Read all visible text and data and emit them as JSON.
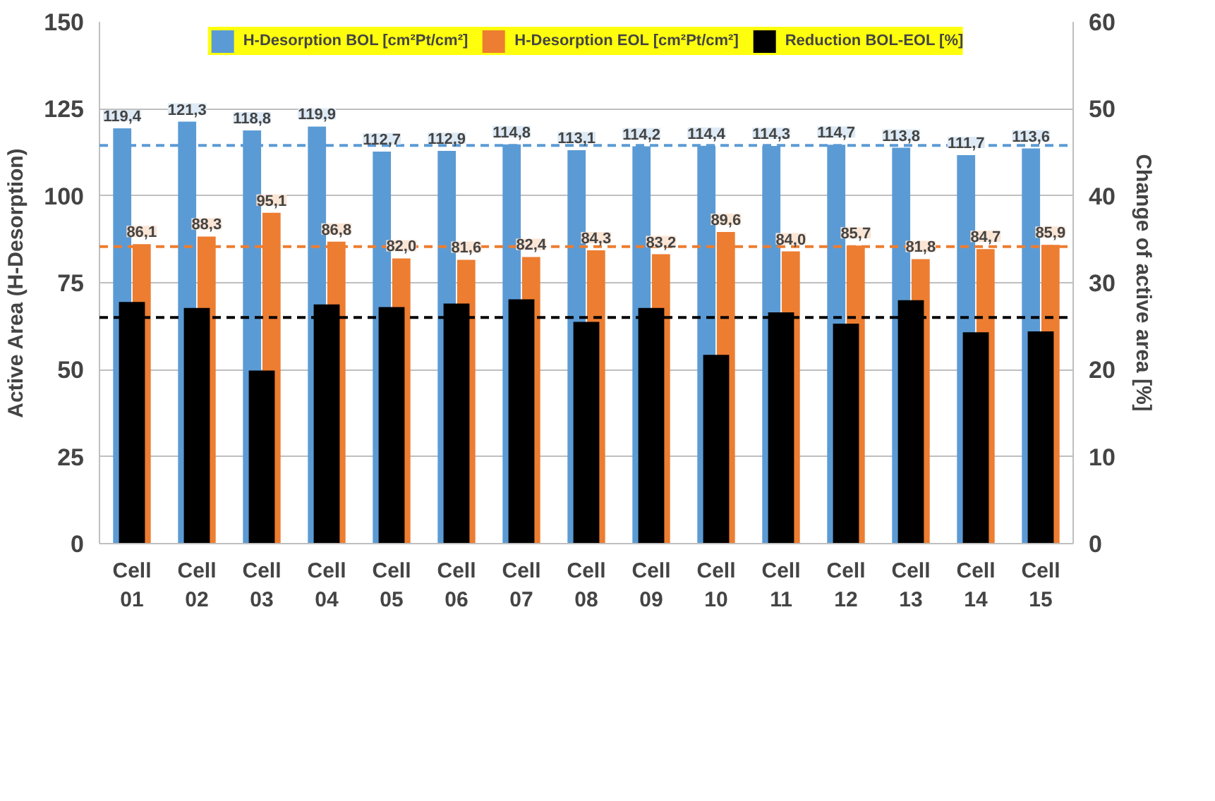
{
  "chart_data": {
    "type": "bar",
    "ylabel": "Active Area (H-Desorption)",
    "y2label": "Change of active area [%]",
    "categories": [
      "Cell 01",
      "Cell 02",
      "Cell 03",
      "Cell 04",
      "Cell 05",
      "Cell 06",
      "Cell 07",
      "Cell 08",
      "Cell 09",
      "Cell 10",
      "Cell 11",
      "Cell 12",
      "Cell 13",
      "Cell 14",
      "Cell 15"
    ],
    "series": [
      {
        "name": "H-Desorption BOL [cm²Pt/cm²]",
        "color": "#5b9bd5",
        "values": [
          119.4,
          121.3,
          118.8,
          119.9,
          112.7,
          112.9,
          114.8,
          113.1,
          114.2,
          114.4,
          114.3,
          114.7,
          113.8,
          111.7,
          113.6
        ],
        "value_labels": [
          "119,4",
          "121,3",
          "118,8",
          "119,9",
          "112,7",
          "112,9",
          "114,8",
          "113,1",
          "114,2",
          "114,4",
          "114,3",
          "114,7",
          "113,8",
          "111,7",
          "113,6"
        ]
      },
      {
        "name": "H-Desorption EOL [cm²Pt/cm²]",
        "color": "#ed7d31",
        "values": [
          86.1,
          88.3,
          95.1,
          86.8,
          82.0,
          81.6,
          82.4,
          84.3,
          83.2,
          89.6,
          84.0,
          85.7,
          81.8,
          84.7,
          85.9
        ],
        "value_labels": [
          "86,1",
          "88,3",
          "95,1",
          "86,8",
          "82,0",
          "81,6",
          "82,4",
          "84,3",
          "83,2",
          "89,6",
          "84,0",
          "85,7",
          "81,8",
          "84,7",
          "85,9"
        ]
      },
      {
        "name": "Reduction BOL-EOL [%]",
        "color": "#000000",
        "axis": "y2",
        "values": [
          27.8,
          27.1,
          19.9,
          27.5,
          27.2,
          27.6,
          28.1,
          25.5,
          27.1,
          21.7,
          26.6,
          25.3,
          28.0,
          24.3,
          24.4
        ]
      }
    ],
    "ylim": [
      0,
      150
    ],
    "yticks": [
      0,
      25,
      50,
      75,
      100,
      125,
      150
    ],
    "y2lim": [
      0,
      60
    ],
    "y2ticks": [
      0,
      10,
      20,
      30,
      40,
      50,
      60
    ],
    "ref_lines": [
      {
        "axis": "y",
        "value": 114.5,
        "color": "#5b9bd5",
        "line_style": "dashed"
      },
      {
        "axis": "y",
        "value": 85.4,
        "color": "#ed7d31",
        "line_style": "dashed"
      },
      {
        "axis": "y2",
        "value": 26,
        "color": "#000000",
        "line_style": "dashed"
      }
    ],
    "grid": "y",
    "legend": "top"
  }
}
